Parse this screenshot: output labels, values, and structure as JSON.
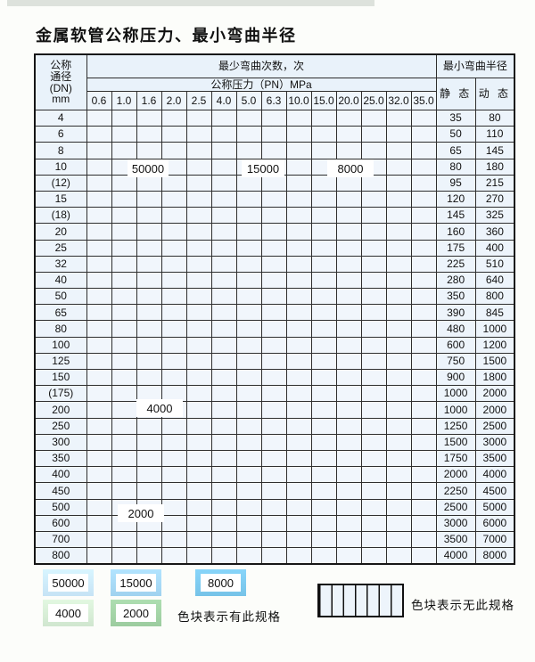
{
  "page": {
    "title": "金属软管公称压力、最小弯曲半径"
  },
  "table": {
    "header": {
      "dn_lines": [
        "公称",
        "通径",
        "(DN)",
        "mm"
      ],
      "bend_cycles_label": "最少弯曲次数，次",
      "pressure_label": "公称压力（PN）MPa",
      "radius_label": "最小弯曲半径",
      "static_label": "静 态",
      "dynamic_label": "动 态",
      "pressures": [
        "0.6",
        "1.0",
        "1.6",
        "2.0",
        "2.5",
        "4.0",
        "5.0",
        "6.3",
        "10.0",
        "15.0",
        "20.0",
        "25.0",
        "32.0",
        "35.0"
      ]
    },
    "zone_labels": {
      "blue_light": "50000",
      "blue_mid": "15000",
      "blue_dark": "8000",
      "green_light": "4000",
      "green_dark": "2000"
    },
    "rows": [
      {
        "dn": "4",
        "zone": "blue",
        "colored": 14,
        "static": "35",
        "dynamic": "80"
      },
      {
        "dn": "6",
        "zone": "blue",
        "colored": 12,
        "static": "50",
        "dynamic": "110"
      },
      {
        "dn": "8",
        "zone": "blue",
        "colored": 12,
        "static": "65",
        "dynamic": "145"
      },
      {
        "dn": "10",
        "zone": "blue",
        "colored": 12,
        "static": "80",
        "dynamic": "180"
      },
      {
        "dn": "(12)",
        "zone": "blue",
        "colored": 12,
        "static": "95",
        "dynamic": "215"
      },
      {
        "dn": "15",
        "zone": "blue",
        "colored": 12,
        "static": "120",
        "dynamic": "270"
      },
      {
        "dn": "(18)",
        "zone": "blue",
        "colored": 11,
        "static": "145",
        "dynamic": "325"
      },
      {
        "dn": "20",
        "zone": "blue",
        "colored": 11,
        "static": "160",
        "dynamic": "360"
      },
      {
        "dn": "25",
        "zone": "blue",
        "colored": 10,
        "static": "175",
        "dynamic": "400"
      },
      {
        "dn": "32",
        "zone": "blue",
        "colored": 9,
        "static": "225",
        "dynamic": "510"
      },
      {
        "dn": "40",
        "zone": "blue",
        "colored": 9,
        "static": "280",
        "dynamic": "640"
      },
      {
        "dn": "50",
        "zone": "blue",
        "colored": 8,
        "static": "350",
        "dynamic": "800"
      },
      {
        "dn": "65",
        "zone": "blue",
        "colored": 8,
        "static": "390",
        "dynamic": "845"
      },
      {
        "dn": "80",
        "zone": "blue",
        "colored": 7,
        "static": "480",
        "dynamic": "1000"
      },
      {
        "dn": "100",
        "zone": "green-light",
        "colored": 6,
        "static": "600",
        "dynamic": "1200"
      },
      {
        "dn": "125",
        "zone": "green-light",
        "colored": 6,
        "static": "750",
        "dynamic": "1500"
      },
      {
        "dn": "150",
        "zone": "green-light",
        "colored": 6,
        "static": "900",
        "dynamic": "1800"
      },
      {
        "dn": "(175)",
        "zone": "green-light",
        "colored": 6,
        "static": "1000",
        "dynamic": "2000"
      },
      {
        "dn": "200",
        "zone": "green-light",
        "colored": 6,
        "static": "1000",
        "dynamic": "2000"
      },
      {
        "dn": "250",
        "zone": "green-light",
        "colored": 6,
        "static": "1250",
        "dynamic": "2500"
      },
      {
        "dn": "300",
        "zone": "green-light",
        "colored": 6,
        "static": "1500",
        "dynamic": "3000"
      },
      {
        "dn": "350",
        "zone": "green-dark",
        "colored": 5,
        "static": "1750",
        "dynamic": "3500"
      },
      {
        "dn": "400",
        "zone": "green-dark",
        "colored": 5,
        "static": "2000",
        "dynamic": "4000"
      },
      {
        "dn": "450",
        "zone": "green-dark",
        "colored": 5,
        "static": "2250",
        "dynamic": "4500"
      },
      {
        "dn": "500",
        "zone": "green-dark",
        "colored": 5,
        "static": "2500",
        "dynamic": "5000"
      },
      {
        "dn": "600",
        "zone": "green-dark",
        "colored": 4,
        "static": "3000",
        "dynamic": "6000"
      },
      {
        "dn": "700",
        "zone": "green-dark",
        "colored": 3,
        "static": "3500",
        "dynamic": "7000"
      },
      {
        "dn": "800",
        "zone": "green-dark",
        "colored": 3,
        "static": "4000",
        "dynamic": "8000"
      }
    ],
    "blue_shade_columns": {
      "light": [
        0,
        4
      ],
      "mid": [
        5,
        7
      ],
      "dark": [
        8,
        13
      ]
    }
  },
  "legend": {
    "items": [
      {
        "value": "50000",
        "zone": "blue-light"
      },
      {
        "value": "15000",
        "zone": "blue-mid"
      },
      {
        "value": "8000",
        "zone": "blue-dark"
      },
      {
        "value": "4000",
        "zone": "green-light"
      },
      {
        "value": "2000",
        "zone": "green-dark"
      }
    ],
    "note_have": "色块表示有此规格",
    "note_none": "色块表示无此规格"
  },
  "colors": {
    "blue_light": "#c6e3f5",
    "blue_mid": "#a0d2ef",
    "blue_dark": "#76c3e8",
    "green_light": "#d0e6cf",
    "green_dark": "#9ccc9f",
    "grid_line": "#2e2e2e",
    "panel_bg": "#edf4fb"
  }
}
